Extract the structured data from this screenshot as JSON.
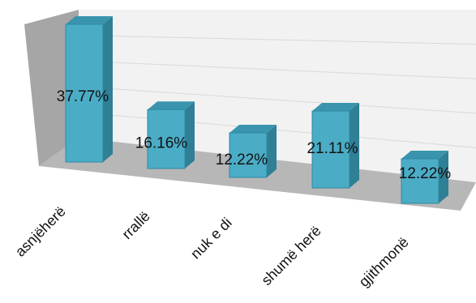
{
  "chart_data": {
    "type": "bar",
    "style": "3d-column",
    "categories": [
      "asnjëherë",
      "rrallë",
      "nuk e di",
      "shumë herë",
      "gjithmonë"
    ],
    "values": [
      37.77,
      16.16,
      12.22,
      21.11,
      12.22
    ],
    "data_labels": [
      "37.77%",
      "16.16%",
      "12.22%",
      "21.11%",
      "12.22%"
    ],
    "ylim": [
      0,
      40
    ],
    "grid": true,
    "legend": "none",
    "colors": {
      "bar_front": "#4bacc6",
      "bar_side": "#2f7f95",
      "bar_top": "#3a94ad",
      "floor": "#b7b7b7",
      "side_wall": "#a6a6a6",
      "back_wall": "#f2f2f2",
      "gridline": "#d9d9d9"
    }
  }
}
